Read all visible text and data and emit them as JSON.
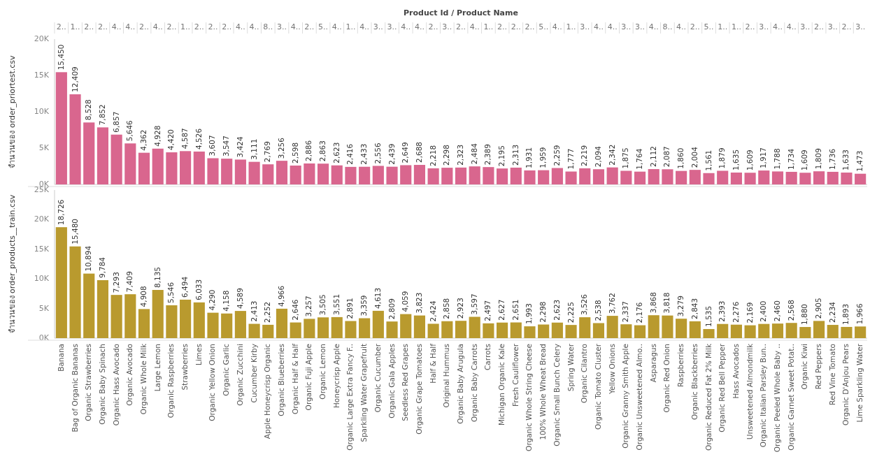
{
  "chart_data": [
    {
      "type": "bar",
      "xlabel": "Product Id / Product Name",
      "ylabel": "จำนวนของ order_priortest.csv",
      "tick_labels": "y",
      "color": "#d9668e",
      "value_labels": [
        "15,450",
        "12,409",
        "8,528",
        "7,852",
        "6,857",
        "5,646",
        "4,362",
        "4,928",
        "4,420",
        "4,587",
        "4,526",
        "3,607",
        "3,547",
        "3,424",
        "3,111",
        "2,769",
        "3,256",
        "2,598",
        "2,886",
        "2,863",
        "2,623",
        "2,416",
        "2,433",
        "2,556",
        "2,439",
        "2,649",
        "2,688",
        "2,218",
        "2,298",
        "2,323",
        "2,484",
        "2,389",
        "2,195",
        "2,313",
        "1,931",
        "1,959",
        "2,259",
        "1,777",
        "2,219",
        "2,094",
        "2,342",
        "1,875",
        "1,764",
        "2,112",
        "2,087",
        "1,860",
        "2,004",
        "1,561",
        "1,879",
        "1,635",
        "1,609",
        "1,917",
        "1,788",
        "1,734",
        "1,609",
        "1,809",
        "1,736",
        "1,633",
        "1,473"
      ],
      "categories": [
        "Banana",
        "Bag of Organic Bananas",
        "Organic Strawberries",
        "Organic Baby Spinach",
        "Organic Hass Avocado",
        "Organic Avocado",
        "Organic Whole Milk",
        "Large Lemon",
        "Organic Raspberries",
        "Strawberries",
        "Limes",
        "Organic Yellow Onion",
        "Organic Garlic",
        "Organic Zucchini",
        "Cucumber Kirby",
        "Apple Honeycrisp Organic",
        "Organic Blueberries",
        "Organic Half & Half",
        "Organic Fuji Apple",
        "Organic Lemon",
        "Honeycrisp Apple",
        "Organic Large Extra Fancy F..",
        "Sparkling Water Grapefruit",
        "Organic Cucumber",
        "Organic Gala Apples",
        "Seedless Red Grapes",
        "Organic Grape Tomatoes",
        "Half & Half",
        "Original Hummus",
        "Organic Baby Arugula",
        "Organic Baby Carrots",
        "Carrots",
        "Michigan Organic Kale",
        "Fresh Cauliflower",
        "Organic Whole String Cheese",
        "100% Whole Wheat Bread",
        "Organic Small Bunch Celery",
        "Spring Water",
        "Organic Cilantro",
        "Organic Tomato Cluster",
        "Yellow Onions",
        "Organic Granny Smith Apple",
        "Organic Unsweetened Almo..",
        "Asparagus",
        "Organic Red Onion",
        "Raspberries",
        "Organic Blackberries",
        "Organic Reduced Fat 2% Milk",
        "Organic Red Bell Pepper",
        "Hass Avocados",
        "Unsweetened Almondmilk",
        "Organic Italian Parsley Bun..",
        "Organic Peeled Whole Baby ..",
        "Organic Garnet Sweet Potat..",
        "Organic Kiwi",
        "Red Peppers",
        "Red Vine Tomato",
        "Organic D'Anjou Pears",
        "Lime Sparkling Water"
      ],
      "values": [
        15450,
        12409,
        8528,
        7852,
        6857,
        5646,
        4362,
        4928,
        4420,
        4587,
        4526,
        3607,
        3547,
        3424,
        3111,
        2769,
        3256,
        2598,
        2886,
        2863,
        2623,
        2416,
        2433,
        2556,
        2439,
        2649,
        2688,
        2218,
        2298,
        2323,
        2484,
        2389,
        2195,
        2313,
        1931,
        1959,
        2259,
        1777,
        2219,
        2094,
        2342,
        1875,
        1764,
        2112,
        2087,
        1860,
        2004,
        1561,
        1879,
        1635,
        1609,
        1917,
        1788,
        1734,
        1609,
        1809,
        1736,
        1633,
        1473
      ],
      "ylim": [
        0,
        20000
      ],
      "yticks": [
        {
          "value": 0,
          "label": "0K"
        },
        {
          "value": 5000,
          "label": "5K"
        },
        {
          "value": 10000,
          "label": "10K"
        },
        {
          "value": 15000,
          "label": "15K"
        },
        {
          "value": 20000,
          "label": "20K"
        }
      ],
      "annotations": [
        "2..",
        "1..",
        "2..",
        "2..",
        "4..",
        "4..",
        "2..",
        "4..",
        "2..",
        "1..",
        "2..",
        "2..",
        "2..",
        "4..",
        "4..",
        "8..",
        "3..",
        "4..",
        "2..",
        "5..",
        "4..",
        "1..",
        "4..",
        "3..",
        "3..",
        "4..",
        "4..",
        "2..",
        "3..",
        "2..",
        "4..",
        "1..",
        "2..",
        "2..",
        "2..",
        "5..",
        "4..",
        "1..",
        "3..",
        "4..",
        "4..",
        "3..",
        "3..",
        "4..",
        "8..",
        "4..",
        "2..",
        "5..",
        "1..",
        "1..",
        "2..",
        "3..",
        "4..",
        "4..",
        "3..",
        "2..",
        "3..",
        "2..",
        "3.."
      ]
    },
    {
      "type": "bar",
      "ylabel": "จำนวนของ order_products__train.csv",
      "color": "#b99a2e",
      "value_labels": [
        "18,726",
        "15,480",
        "10,894",
        "9,784",
        "7,293",
        "7,409",
        "4,908",
        "8,135",
        "5,546",
        "6,494",
        "6,033",
        "4,290",
        "4,158",
        "4,589",
        "2,413",
        "2,252",
        "4,966",
        "2,646",
        "3,257",
        "3,505",
        "3,551",
        "2,891",
        "3,359",
        "4,613",
        "2,809",
        "4,059",
        "3,823",
        "2,424",
        "2,858",
        "2,923",
        "3,597",
        "2,497",
        "2,627",
        "2,651",
        "1,993",
        "2,298",
        "2,623",
        "2,225",
        "3,526",
        "2,538",
        "3,762",
        "2,337",
        "2,176",
        "3,868",
        "3,818",
        "3,279",
        "2,843",
        "1,535",
        "2,393",
        "2,276",
        "2,169",
        "2,400",
        "2,460",
        "2,568",
        "1,880",
        "2,905",
        "2,234",
        "1,893",
        "1,966"
      ],
      "categories": [
        "Banana",
        "Bag of Organic Bananas",
        "Organic Strawberries",
        "Organic Baby Spinach",
        "Organic Hass Avocado",
        "Organic Avocado",
        "Organic Whole Milk",
        "Large Lemon",
        "Organic Raspberries",
        "Strawberries",
        "Limes",
        "Organic Yellow Onion",
        "Organic Garlic",
        "Organic Zucchini",
        "Cucumber Kirby",
        "Apple Honeycrisp Organic",
        "Organic Blueberries",
        "Organic Half & Half",
        "Organic Fuji Apple",
        "Organic Lemon",
        "Honeycrisp Apple",
        "Organic Large Extra Fancy F..",
        "Sparkling Water Grapefruit",
        "Organic Cucumber",
        "Organic Gala Apples",
        "Seedless Red Grapes",
        "Organic Grape Tomatoes",
        "Half & Half",
        "Original Hummus",
        "Organic Baby Arugula",
        "Organic Baby Carrots",
        "Carrots",
        "Michigan Organic Kale",
        "Fresh Cauliflower",
        "Organic Whole String Cheese",
        "100% Whole Wheat Bread",
        "Organic Small Bunch Celery",
        "Spring Water",
        "Organic Cilantro",
        "Organic Tomato Cluster",
        "Yellow Onions",
        "Organic Granny Smith Apple",
        "Organic Unsweetened Almo..",
        "Asparagus",
        "Organic Red Onion",
        "Raspberries",
        "Organic Blackberries",
        "Organic Reduced Fat 2% Milk",
        "Organic Red Bell Pepper",
        "Hass Avocados",
        "Unsweetened Almondmilk",
        "Organic Italian Parsley Bun..",
        "Organic Peeled Whole Baby ..",
        "Organic Garnet Sweet Potat..",
        "Organic Kiwi",
        "Red Peppers",
        "Red Vine Tomato",
        "Organic D'Anjou Pears",
        "Lime Sparkling Water"
      ],
      "values": [
        18726,
        15480,
        10894,
        9784,
        7293,
        7409,
        4908,
        8135,
        5546,
        6494,
        6033,
        4290,
        4158,
        4589,
        2413,
        2252,
        4966,
        2646,
        3257,
        3505,
        3551,
        2891,
        3359,
        4613,
        2809,
        4059,
        3823,
        2424,
        2858,
        2923,
        3597,
        2497,
        2627,
        2651,
        1993,
        2298,
        2623,
        2225,
        3526,
        2538,
        3762,
        2337,
        2176,
        3868,
        3818,
        3279,
        2843,
        1535,
        2393,
        2276,
        2169,
        2400,
        2460,
        2568,
        1880,
        2905,
        2234,
        1893,
        1966
      ],
      "ylim": [
        0,
        25000
      ],
      "yticks": [
        {
          "value": 0,
          "label": "0K"
        },
        {
          "value": 5000,
          "label": "5K"
        },
        {
          "value": 10000,
          "label": "10K"
        },
        {
          "value": 15000,
          "label": "15K"
        },
        {
          "value": 20000,
          "label": "20K"
        },
        {
          "value": 25000,
          "label": "25K"
        }
      ]
    }
  ]
}
